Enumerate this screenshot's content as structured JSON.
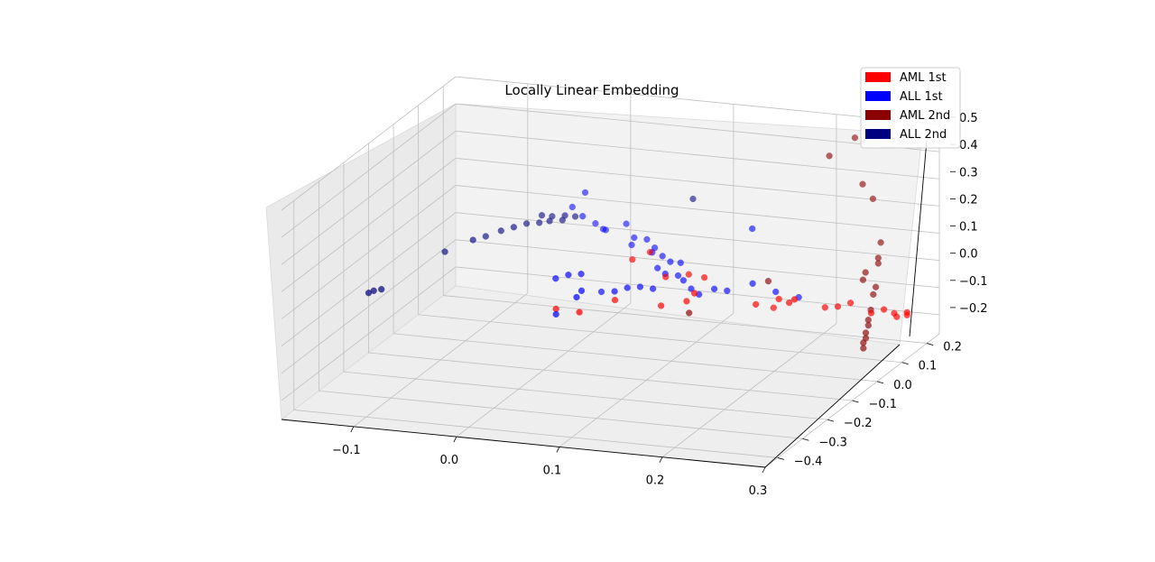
{
  "chart_data": {
    "type": "scatter",
    "title": "Locally Linear Embedding",
    "xlabel": "",
    "ylabel": "",
    "zlabel": "",
    "projection": "3d",
    "xlim": [
      -0.17,
      0.3
    ],
    "ylim": [
      -0.45,
      0.25
    ],
    "zlim": [
      -0.27,
      0.5
    ],
    "x_ticks": [
      "−0.1",
      "0.0",
      "0.1",
      "0.2",
      "0.3"
    ],
    "y_ticks": [
      "−0.4",
      "−0.3",
      "−0.2",
      "−0.1",
      "0.0",
      "0.1",
      "0.2"
    ],
    "z_ticks": [
      "−0.2",
      "−0.1",
      "0.0",
      "0.1",
      "0.2",
      "0.3",
      "0.4",
      "0.5"
    ],
    "grid": true,
    "legend_position": "top-right",
    "series": [
      {
        "name": "AML 1st",
        "color": "#ff0000",
        "points": [
          [
            0.0,
            -0.05,
            -0.08
          ],
          [
            0.03,
            -0.08,
            -0.06
          ],
          [
            0.05,
            -0.02,
            -0.05
          ],
          [
            0.09,
            0.0,
            -0.07
          ],
          [
            0.11,
            0.02,
            -0.06
          ],
          [
            0.12,
            0.01,
            -0.02
          ],
          [
            0.08,
            0.06,
            -0.01
          ],
          [
            0.06,
            0.08,
            0.06
          ],
          [
            0.1,
            0.07,
            0.0
          ],
          [
            0.12,
            0.05,
            0.01
          ],
          [
            0.17,
            0.05,
            -0.07
          ],
          [
            0.2,
            0.06,
            -0.06
          ],
          [
            0.19,
            0.06,
            -0.05
          ],
          [
            0.23,
            0.08,
            -0.08
          ],
          [
            0.24,
            0.09,
            -0.08
          ],
          [
            0.25,
            0.1,
            -0.07
          ],
          [
            0.27,
            0.1,
            -0.1
          ],
          [
            0.28,
            0.11,
            -0.09
          ],
          [
            0.29,
            0.11,
            -0.1
          ],
          [
            0.3,
            0.12,
            -0.11
          ],
          [
            0.29,
            0.12,
            -0.12
          ],
          [
            0.3,
            0.12,
            -0.1
          ],
          [
            0.21,
            0.04,
            -0.03
          ],
          [
            0.18,
            0.08,
            -0.1
          ],
          [
            0.05,
            0.05,
            0.05
          ]
        ]
      },
      {
        "name": "ALL 1st",
        "color": "#0000ff",
        "points": [
          [
            0.0,
            -0.05,
            -0.1
          ],
          [
            0.02,
            -0.05,
            -0.03
          ],
          [
            -0.01,
            -0.01,
            0.0
          ],
          [
            0.0,
            0.0,
            0.01
          ],
          [
            0.01,
            0.01,
            0.01
          ],
          [
            0.02,
            -0.03,
            -0.02
          ],
          [
            -0.02,
            0.15,
            0.2
          ],
          [
            -0.03,
            0.14,
            0.15
          ],
          [
            -0.02,
            0.14,
            0.12
          ],
          [
            -0.01,
            0.15,
            0.09
          ],
          [
            0.0,
            0.14,
            0.08
          ],
          [
            0.0,
            0.15,
            0.07
          ],
          [
            0.02,
            0.15,
            0.1
          ],
          [
            0.03,
            0.14,
            0.06
          ],
          [
            0.03,
            0.13,
            0.04
          ],
          [
            0.04,
            0.15,
            0.05
          ],
          [
            0.05,
            0.14,
            0.03
          ],
          [
            0.05,
            0.13,
            0.02
          ],
          [
            0.06,
            0.13,
            0.01
          ],
          [
            0.07,
            0.12,
            0.0
          ],
          [
            0.08,
            0.12,
            0.0
          ],
          [
            0.06,
            0.11,
            -0.02
          ],
          [
            0.07,
            0.1,
            -0.03
          ],
          [
            0.08,
            0.11,
            -0.04
          ],
          [
            0.09,
            0.09,
            -0.04
          ],
          [
            0.1,
            0.08,
            -0.06
          ],
          [
            0.11,
            0.07,
            -0.07
          ],
          [
            0.12,
            0.09,
            -0.06
          ],
          [
            0.13,
            0.1,
            -0.07
          ],
          [
            0.15,
            0.12,
            -0.05
          ],
          [
            0.17,
            0.13,
            -0.08
          ],
          [
            0.19,
            0.14,
            -0.1
          ],
          [
            0.04,
            0.02,
            -0.05
          ],
          [
            0.05,
            0.03,
            -0.04
          ],
          [
            0.06,
            0.04,
            -0.04
          ],
          [
            0.07,
            0.05,
            -0.05
          ],
          [
            0.02,
            0.05,
            -0.08
          ],
          [
            0.14,
            0.16,
            0.12
          ]
        ]
      },
      {
        "name": "AML 2nd",
        "color": "#8b0000",
        "points": [
          [
            0.21,
            0.18,
            0.4
          ],
          [
            0.23,
            0.2,
            0.46
          ],
          [
            0.24,
            0.19,
            0.3
          ],
          [
            0.25,
            0.19,
            0.25
          ],
          [
            0.26,
            0.18,
            0.1
          ],
          [
            0.26,
            0.17,
            0.05
          ],
          [
            0.26,
            0.17,
            0.03
          ],
          [
            0.25,
            0.16,
            0.0
          ],
          [
            0.25,
            0.15,
            -0.02
          ],
          [
            0.26,
            0.16,
            -0.05
          ],
          [
            0.26,
            0.15,
            -0.07
          ],
          [
            0.26,
            0.14,
            -0.12
          ],
          [
            0.26,
            0.13,
            -0.15
          ],
          [
            0.26,
            0.13,
            -0.17
          ],
          [
            0.26,
            0.12,
            -0.19
          ],
          [
            0.26,
            0.12,
            -0.21
          ],
          [
            0.26,
            0.11,
            -0.22
          ],
          [
            0.26,
            0.11,
            -0.24
          ],
          [
            0.17,
            0.1,
            -0.02
          ],
          [
            0.11,
            0.03,
            -0.11
          ]
        ]
      },
      {
        "name": "ALL 2nd",
        "color": "#000080",
        "points": [
          [
            -0.17,
            -0.1,
            -0.05
          ],
          [
            -0.165,
            -0.1,
            -0.04
          ],
          [
            -0.16,
            -0.09,
            -0.04
          ],
          [
            -0.12,
            0.0,
            0.05
          ],
          [
            -0.1,
            0.03,
            0.08
          ],
          [
            -0.09,
            0.04,
            0.09
          ],
          [
            -0.08,
            0.06,
            0.1
          ],
          [
            -0.07,
            0.07,
            0.11
          ],
          [
            -0.06,
            0.08,
            0.12
          ],
          [
            -0.05,
            0.09,
            0.12
          ],
          [
            -0.04,
            0.09,
            0.13
          ],
          [
            -0.05,
            0.1,
            0.14
          ],
          [
            -0.04,
            0.1,
            0.14
          ],
          [
            -0.03,
            0.1,
            0.13
          ],
          [
            -0.03,
            0.11,
            0.14
          ],
          [
            -0.02,
            0.11,
            0.14
          ],
          [
            0.08,
            0.17,
            0.2
          ]
        ]
      }
    ]
  }
}
